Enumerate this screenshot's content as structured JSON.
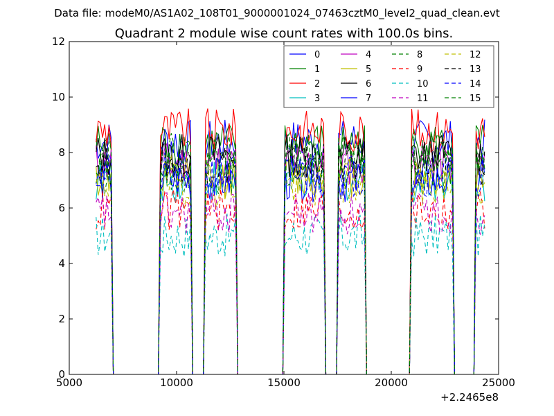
{
  "chart_data": {
    "type": "line",
    "suptitle": "Data file: modeM0/AS1A02_108T01_9000001024_07463cztM0_level2_quad_clean.evt",
    "title": "Quadrant 2 module wise count rates with 100.0s bins.",
    "xlabel": "",
    "ylabel": "",
    "x_offset_label": "+2.2465e8",
    "xlim": [
      5000,
      25000
    ],
    "ylim": [
      0,
      12
    ],
    "xticks": [
      5000,
      10000,
      15000,
      20000,
      25000
    ],
    "xtick_labels": [
      "5000",
      "10000",
      "15000",
      "20000",
      "25000"
    ],
    "yticks": [
      0,
      2,
      4,
      6,
      8,
      10,
      12
    ],
    "ytick_labels": [
      "0",
      "2",
      "4",
      "6",
      "8",
      "10",
      "12"
    ],
    "grid": false,
    "legend_position": "top-right",
    "legend_columns": 4,
    "segments": [
      [
        6250,
        6950
      ],
      [
        9250,
        10650
      ],
      [
        11350,
        12750
      ],
      [
        15050,
        16850
      ],
      [
        17550,
        18750
      ],
      [
        20950,
        22850
      ],
      [
        23950,
        24350
      ]
    ],
    "gap_ends": [
      7150,
      9050,
      10850,
      11150,
      12950,
      14850,
      17050,
      17350,
      18950,
      20750,
      23050,
      23750
    ],
    "series": [
      {
        "name": "0",
        "color": "#0000ff",
        "dash": "solid",
        "level": 8.4
      },
      {
        "name": "1",
        "color": "#008000",
        "dash": "solid",
        "level": 8.3
      },
      {
        "name": "2",
        "color": "#ff0000",
        "dash": "solid",
        "level": 8.8
      },
      {
        "name": "3",
        "color": "#00bfbf",
        "dash": "solid",
        "level": 7.0
      },
      {
        "name": "4",
        "color": "#bf00bf",
        "dash": "solid",
        "level": 7.6
      },
      {
        "name": "5",
        "color": "#bfbf00",
        "dash": "solid",
        "level": 7.1
      },
      {
        "name": "6",
        "color": "#000000",
        "dash": "solid",
        "level": 7.9
      },
      {
        "name": "7",
        "color": "#0000ff",
        "dash": "solid",
        "level": 7.0
      },
      {
        "name": "8",
        "color": "#008000",
        "dash": "dashed",
        "level": 7.3
      },
      {
        "name": "9",
        "color": "#ff0000",
        "dash": "dashed",
        "level": 5.9
      },
      {
        "name": "10",
        "color": "#00bfbf",
        "dash": "dashed",
        "level": 5.0
      },
      {
        "name": "11",
        "color": "#bf00bf",
        "dash": "dashed",
        "level": 5.8
      },
      {
        "name": "12",
        "color": "#bfbf00",
        "dash": "dashed",
        "level": 6.8
      },
      {
        "name": "13",
        "color": "#000000",
        "dash": "dashed",
        "level": 7.6
      },
      {
        "name": "14",
        "color": "#0000ff",
        "dash": "dashed",
        "level": 7.2
      },
      {
        "name": "15",
        "color": "#008000",
        "dash": "dashed",
        "level": 7.9
      }
    ]
  }
}
